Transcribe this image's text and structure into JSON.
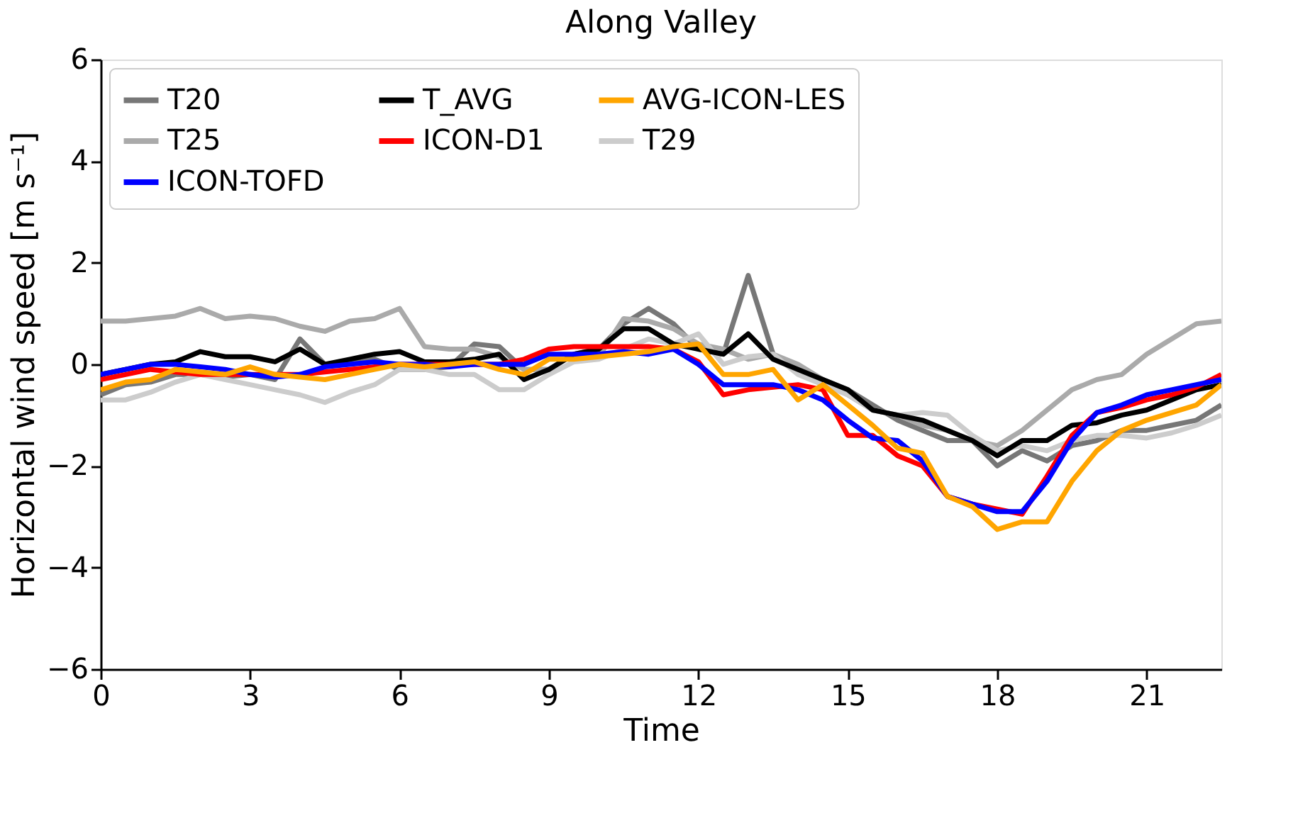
{
  "chart_data": {
    "type": "line",
    "title": "Along Valley",
    "xlabel": "Time",
    "ylabel": "Horizontal wind speed [m s⁻¹]",
    "x": [
      0,
      0.5,
      1,
      1.5,
      2,
      2.5,
      3,
      3.5,
      4,
      4.5,
      5,
      5.5,
      6,
      6.5,
      7,
      7.5,
      8,
      8.5,
      9,
      9.5,
      10,
      10.5,
      11,
      11.5,
      12,
      12.5,
      13,
      13.5,
      14,
      14.5,
      15,
      15.5,
      16,
      16.5,
      17,
      17.5,
      18,
      18.5,
      19,
      19.5,
      20,
      20.5,
      21,
      21.5,
      22,
      22.5
    ],
    "series": [
      {
        "name": "T20",
        "color": "#777777",
        "values": [
          -0.6,
          -0.4,
          -0.35,
          -0.2,
          -0.2,
          -0.25,
          -0.2,
          -0.3,
          0.5,
          0.0,
          0.05,
          0.1,
          -0.1,
          -0.1,
          -0.05,
          0.4,
          0.35,
          -0.1,
          -0.1,
          0.2,
          0.3,
          0.8,
          1.1,
          0.8,
          0.3,
          0.2,
          1.75,
          0.2,
          -0.1,
          -0.3,
          -0.5,
          -0.8,
          -1.1,
          -1.3,
          -1.5,
          -1.5,
          -2.0,
          -1.7,
          -1.9,
          -1.6,
          -1.5,
          -1.3,
          -1.3,
          -1.2,
          -1.1,
          -0.8
        ]
      },
      {
        "name": "T25",
        "color": "#aaaaaa",
        "values": [
          0.85,
          0.85,
          0.9,
          0.95,
          1.1,
          0.9,
          0.95,
          0.9,
          0.75,
          0.65,
          0.85,
          0.9,
          1.1,
          0.35,
          0.3,
          0.3,
          0.15,
          -0.1,
          -0.1,
          0.2,
          0.15,
          0.9,
          0.85,
          0.7,
          0.4,
          0.3,
          0.1,
          0.2,
          0.0,
          -0.3,
          -0.6,
          -0.9,
          -1.0,
          -1.2,
          -1.3,
          -1.5,
          -1.6,
          -1.3,
          -0.9,
          -0.5,
          -0.3,
          -0.2,
          0.2,
          0.5,
          0.8,
          0.85
        ]
      },
      {
        "name": "T29",
        "color": "#cccccc",
        "values": [
          -0.7,
          -0.7,
          -0.55,
          -0.35,
          -0.2,
          -0.3,
          -0.4,
          -0.5,
          -0.6,
          -0.75,
          -0.55,
          -0.4,
          -0.1,
          -0.1,
          -0.2,
          -0.2,
          -0.5,
          -0.5,
          -0.2,
          0.05,
          0.1,
          0.3,
          0.5,
          0.4,
          0.6,
          0.0,
          0.15,
          0.2,
          -0.2,
          -0.4,
          -0.6,
          -0.9,
          -1.0,
          -0.95,
          -1.0,
          -1.4,
          -1.7,
          -1.6,
          -1.7,
          -1.5,
          -1.4,
          -1.4,
          -1.45,
          -1.35,
          -1.2,
          -1.0
        ]
      },
      {
        "name": "T_AVG",
        "color": "#000000",
        "values": [
          -0.2,
          -0.1,
          0,
          0.05,
          0.25,
          0.15,
          0.15,
          0.05,
          0.3,
          0,
          0.1,
          0.2,
          0.25,
          0.05,
          0.05,
          0.1,
          0.2,
          -0.3,
          -0.1,
          0.2,
          0.3,
          0.7,
          0.7,
          0.4,
          0.3,
          0.2,
          0.6,
          0.1,
          -0.1,
          -0.3,
          -0.5,
          -0.9,
          -1.0,
          -1.1,
          -1.3,
          -1.5,
          -1.8,
          -1.5,
          -1.5,
          -1.2,
          -1.15,
          -1.0,
          -0.9,
          -0.7,
          -0.5,
          -0.4
        ]
      },
      {
        "name": "ICON-D1",
        "color": "#ff0000",
        "values": [
          -0.3,
          -0.2,
          -0.1,
          -0.15,
          -0.2,
          -0.2,
          -0.2,
          -0.2,
          -0.2,
          -0.15,
          -0.1,
          -0.05,
          0,
          0,
          0,
          0,
          0,
          0.1,
          0.3,
          0.35,
          0.35,
          0.35,
          0.35,
          0.3,
          0.05,
          -0.6,
          -0.5,
          -0.45,
          -0.4,
          -0.5,
          -1.4,
          -1.4,
          -1.8,
          -2.0,
          -2.6,
          -2.75,
          -2.85,
          -2.95,
          -2.2,
          -1.4,
          -0.95,
          -0.85,
          -0.7,
          -0.6,
          -0.45,
          -0.2
        ]
      },
      {
        "name": "ICON-TOFD",
        "color": "#0000ff",
        "values": [
          -0.2,
          -0.1,
          0,
          0,
          -0.05,
          -0.1,
          -0.2,
          -0.25,
          -0.2,
          -0.05,
          0,
          0.05,
          0,
          0,
          -0.05,
          0,
          0,
          0,
          0.2,
          0.2,
          0.2,
          0.25,
          0.2,
          0.3,
          0.0,
          -0.4,
          -0.4,
          -0.4,
          -0.5,
          -0.7,
          -1.1,
          -1.45,
          -1.5,
          -1.9,
          -2.6,
          -2.75,
          -2.9,
          -2.9,
          -2.3,
          -1.5,
          -0.95,
          -0.8,
          -0.6,
          -0.5,
          -0.4,
          -0.3
        ]
      },
      {
        "name": "AVG-ICON-LES",
        "color": "#ffa500",
        "values": [
          -0.5,
          -0.35,
          -0.3,
          -0.1,
          -0.15,
          -0.2,
          -0.05,
          -0.2,
          -0.25,
          -0.3,
          -0.2,
          -0.1,
          0,
          -0.05,
          0,
          0.05,
          -0.1,
          -0.2,
          0.1,
          0.1,
          0.15,
          0.2,
          0.25,
          0.35,
          0.4,
          -0.2,
          -0.2,
          -0.1,
          -0.7,
          -0.4,
          -0.8,
          -1.2,
          -1.65,
          -1.75,
          -2.6,
          -2.8,
          -3.25,
          -3.1,
          -3.1,
          -2.3,
          -1.7,
          -1.3,
          -1.1,
          -0.95,
          -0.8,
          -0.4
        ]
      }
    ],
    "xlim": [
      0,
      22.5
    ],
    "xticks": [
      0,
      3,
      6,
      9,
      12,
      15,
      18,
      21
    ],
    "ylim": [
      -6,
      6
    ],
    "yticks": [
      -6,
      -4,
      -2,
      0,
      2,
      4,
      6
    ],
    "grid": false,
    "legend": "top left",
    "marker": "none",
    "line_style": "solid"
  }
}
